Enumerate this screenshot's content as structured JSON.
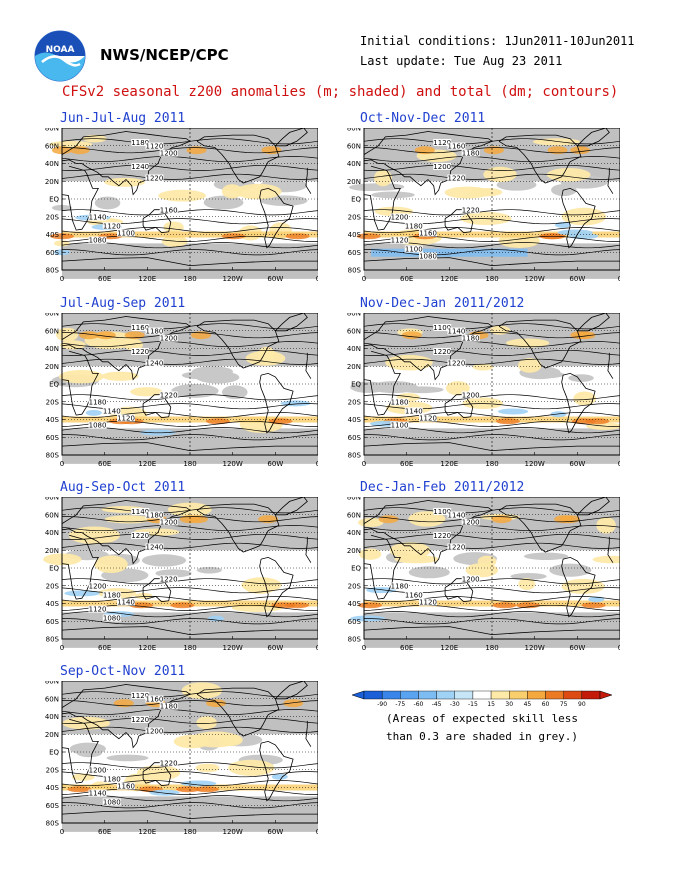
{
  "header": {
    "agency": "NWS/NCEP/CPC",
    "initial_conditions": "Initial conditions: 1Jun2011-10Jun2011",
    "last_update": "Last update: Tue Aug 23 2011",
    "title": "CFSv2 seasonal z200 anomalies (m; shaded) and total (dm; contours)"
  },
  "logo": {
    "icon": "noaa-logo-icon"
  },
  "lat_labels": [
    "80N",
    "60N",
    "40N",
    "20N",
    "EQ",
    "20S",
    "40S",
    "60S",
    "80S"
  ],
  "lon_labels": [
    "0",
    "60E",
    "120E",
    "180",
    "120W",
    "60W",
    "0"
  ],
  "panels": [
    {
      "title": "Jun-Jul-Aug 2011",
      "contours": [
        "1180",
        "1120",
        "1200",
        "1240",
        "1220",
        "1160",
        "1140",
        "1120",
        "1100",
        "1080"
      ]
    },
    {
      "title": "Oct-Nov-Dec 2011",
      "contours": [
        "1120",
        "1160",
        "1180",
        "1200",
        "1220",
        "1220",
        "1200",
        "1180",
        "1160",
        "1120",
        "1100",
        "1080"
      ]
    },
    {
      "title": "Jul-Aug-Sep 2011",
      "contours": [
        "1160",
        "1180",
        "1200",
        "1220",
        "1240",
        "1220",
        "1180",
        "1140",
        "1120",
        "1080"
      ]
    },
    {
      "title": "Nov-Dec-Jan 2011/2012",
      "contours": [
        "1100",
        "1140",
        "1180",
        "1220",
        "1220",
        "1200",
        "1180",
        "1140",
        "1120",
        "1100"
      ]
    },
    {
      "title": "Aug-Sep-Oct 2011",
      "contours": [
        "1140",
        "1180",
        "1200",
        "1220",
        "1240",
        "1220",
        "1200",
        "1180",
        "1140",
        "1120",
        "1080"
      ]
    },
    {
      "title": "Dec-Jan-Feb 2011/2012",
      "contours": [
        "1100",
        "1140",
        "1200",
        "1220",
        "1220",
        "1200",
        "1180",
        "1160",
        "1120"
      ]
    },
    {
      "title": "Sep-Oct-Nov 2011",
      "contours": [
        "1120",
        "1160",
        "1180",
        "1220",
        "1200",
        "1220",
        "1200",
        "1180",
        "1160",
        "1140",
        "1080"
      ]
    }
  ],
  "colorbar": {
    "ticks": [
      "-90",
      "-75",
      "-60",
      "-45",
      "-30",
      "-15",
      "15",
      "30",
      "45",
      "60",
      "75",
      "90"
    ],
    "colors": [
      "#1a5fd8",
      "#3a86e8",
      "#5aa3f0",
      "#7dbcf2",
      "#a0d2f5",
      "#c6e6f8",
      "#ffffff",
      "#fde9a8",
      "#f9cf6e",
      "#f4a83e",
      "#ec7a22",
      "#dd4a12",
      "#c41a0a"
    ],
    "note_line1": "(Areas of expected skill less",
    "note_line2": "than 0.3 are shaded in grey.)"
  }
}
